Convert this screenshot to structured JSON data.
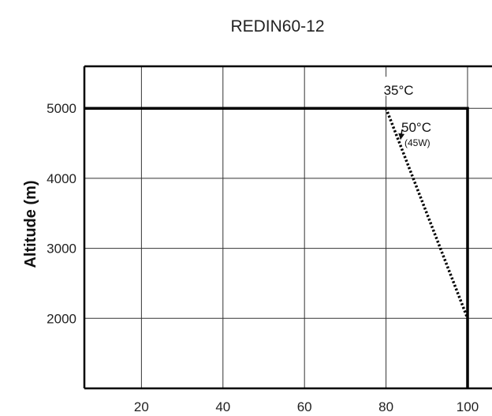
{
  "chart_data": {
    "type": "line",
    "title": "REDIN60-12",
    "xlabel": "",
    "ylabel": "Altitude (m)",
    "xlim": [
      6,
      106
    ],
    "ylim": [
      1000,
      5600
    ],
    "x_ticks": [
      20,
      40,
      60,
      80,
      100
    ],
    "y_ticks": [
      2000,
      3000,
      4000,
      5000
    ],
    "grid": true,
    "series": [
      {
        "name": "35°C",
        "style": "solid",
        "color": "#000000",
        "points": [
          [
            6,
            5000
          ],
          [
            100,
            5000
          ],
          [
            100,
            1000
          ]
        ]
      },
      {
        "name": "50°C",
        "style": "dotted",
        "color": "#000000",
        "points": [
          [
            80,
            5000
          ],
          [
            100,
            2000
          ]
        ]
      }
    ],
    "annotations": [
      {
        "id": "label-35",
        "text": "35°C",
        "x": 80,
        "y": 5000
      },
      {
        "id": "label-50",
        "text": "50°C",
        "x": 83,
        "y": 4550
      },
      {
        "id": "label-45w",
        "text": "(45W)",
        "x": 83,
        "y": 4550
      }
    ]
  }
}
